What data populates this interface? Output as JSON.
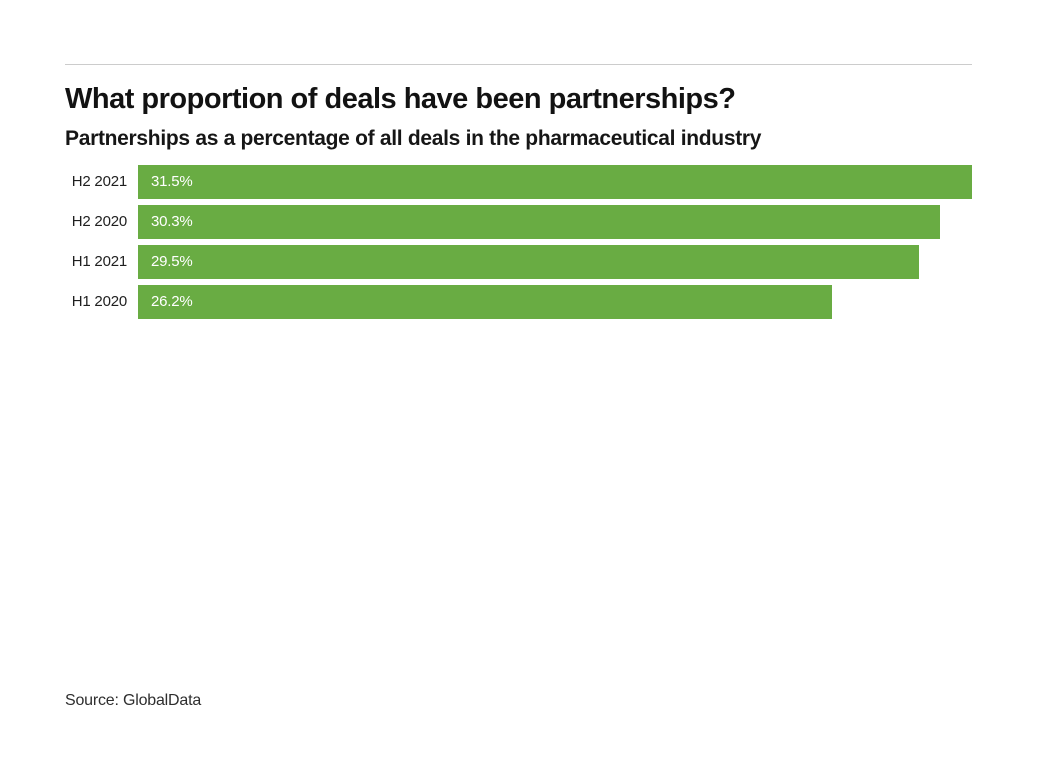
{
  "page": {
    "background": "#ffffff",
    "divider_color": "#cccccc"
  },
  "header": {
    "title": "What proportion of deals have been partnerships?",
    "subtitle": "Partnerships as a percentage of all deals in the pharmaceutical industry"
  },
  "footer": {
    "source": "Source: GlobalData"
  },
  "chart_data": {
    "type": "bar",
    "orientation": "horizontal",
    "title": "What proportion of deals have been partnerships?",
    "subtitle": "Partnerships as a percentage of all deals in the pharmaceutical industry",
    "categories": [
      "H2 2021",
      "H2 2020",
      "H1 2021",
      "H1 2020"
    ],
    "values": [
      31.5,
      30.3,
      29.5,
      26.2
    ],
    "value_labels": [
      "31.5%",
      "30.3%",
      "29.5%",
      "26.2%"
    ],
    "xlabel": "",
    "ylabel": "",
    "xlim": [
      0,
      31.5
    ],
    "grid": false,
    "legend": false,
    "bar_color": "#69ac43",
    "value_label_color": "#ffffff",
    "category_label_color": "#1f1f1f",
    "source": "Source: GlobalData"
  }
}
